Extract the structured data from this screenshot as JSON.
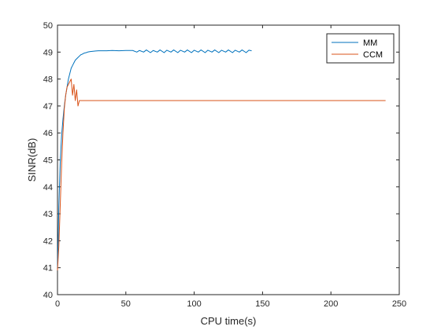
{
  "chart_data": {
    "type": "line",
    "title": "",
    "xlabel": "CPU time(s)",
    "ylabel": "SINR(dB)",
    "xlim": [
      0,
      250
    ],
    "ylim": [
      40,
      50
    ],
    "xticks": [
      0,
      50,
      100,
      150,
      200,
      250
    ],
    "yticks": [
      40,
      41,
      42,
      43,
      44,
      45,
      46,
      47,
      48,
      49,
      50
    ],
    "grid": false,
    "legend_position": "top-right",
    "series": [
      {
        "name": "MM",
        "color": "#0072BD",
        "x": [
          0,
          0.5,
          1,
          2,
          3,
          4,
          5,
          6,
          7,
          8,
          9,
          10,
          11,
          12,
          13,
          14,
          15,
          16,
          17,
          18,
          19,
          20,
          21,
          22,
          24,
          26,
          28,
          30,
          33,
          36,
          40,
          45,
          50,
          55,
          58,
          60,
          63,
          65,
          68,
          70,
          73,
          75,
          78,
          80,
          83,
          85,
          88,
          90,
          93,
          95,
          98,
          100,
          103,
          105,
          108,
          110,
          113,
          115,
          118,
          120,
          123,
          125,
          128,
          130,
          133,
          135,
          138,
          140,
          142
        ],
        "y": [
          41.0,
          42.0,
          43.3,
          44.9,
          45.9,
          46.5,
          47.0,
          47.4,
          47.7,
          48.0,
          48.2,
          48.4,
          48.5,
          48.6,
          48.7,
          48.75,
          48.8,
          48.85,
          48.9,
          48.92,
          48.95,
          48.97,
          48.98,
          49.0,
          49.02,
          49.03,
          49.04,
          49.05,
          49.05,
          49.05,
          49.06,
          49.05,
          49.06,
          49.06,
          49.0,
          49.06,
          49.0,
          49.08,
          48.98,
          49.06,
          49.0,
          49.08,
          48.98,
          49.07,
          49.0,
          49.08,
          48.98,
          49.07,
          49.0,
          49.08,
          48.98,
          49.07,
          49.0,
          49.08,
          48.98,
          49.07,
          49.0,
          49.08,
          48.98,
          49.07,
          49.0,
          49.08,
          48.98,
          49.07,
          49.0,
          49.08,
          48.98,
          49.07,
          49.05
        ]
      },
      {
        "name": "CCM",
        "color": "#D95319",
        "x": [
          0,
          1,
          2,
          3,
          4,
          5,
          6,
          7,
          8,
          9,
          10,
          11,
          12,
          13,
          14,
          15,
          16,
          20,
          50,
          100,
          150,
          200,
          240
        ],
        "y": [
          40.9,
          41.8,
          43.3,
          44.8,
          46.0,
          46.9,
          47.4,
          47.7,
          47.8,
          47.9,
          48.0,
          47.4,
          47.8,
          47.2,
          47.6,
          47.0,
          47.2,
          47.2,
          47.2,
          47.2,
          47.2,
          47.2,
          47.2
        ]
      }
    ]
  }
}
